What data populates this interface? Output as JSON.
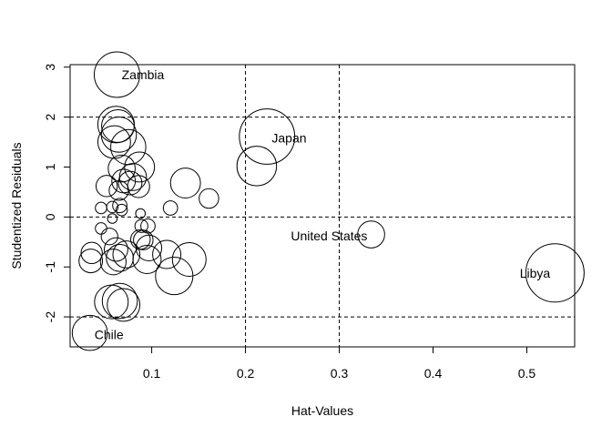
{
  "chart_data": {
    "type": "scatter",
    "title": "",
    "xlabel": "Hat-Values",
    "ylabel": "Studentized Residuals",
    "xlim": [
      0.013,
      0.551
    ],
    "ylim": [
      -2.6,
      3.05
    ],
    "x_ticks": [
      0.1,
      0.2,
      0.3,
      0.4,
      0.5
    ],
    "x_tick_labels": [
      "0.1",
      "0.2",
      "0.3",
      "0.4",
      "0.5"
    ],
    "y_ticks": [
      -2,
      -1,
      0,
      1,
      2,
      3
    ],
    "y_tick_labels": [
      "-2",
      "-1",
      "0",
      "1",
      "2",
      "3"
    ],
    "reference_lines": {
      "horizontal": [
        -2,
        0,
        2
      ],
      "vertical": [
        0.2,
        0.3
      ]
    },
    "points": [
      {
        "x": 0.063,
        "y": 2.85,
        "size": 0.6
      },
      {
        "x": 0.223,
        "y": 1.61,
        "size": 0.9
      },
      {
        "x": 0.334,
        "y": -0.35,
        "size": 0.2
      },
      {
        "x": 0.53,
        "y": -1.12,
        "size": 1.0
      },
      {
        "x": 0.034,
        "y": -2.32,
        "size": 0.35
      },
      {
        "x": 0.062,
        "y": 1.85,
        "size": 0.38
      },
      {
        "x": 0.064,
        "y": 1.82,
        "size": 0.3
      },
      {
        "x": 0.065,
        "y": 1.65,
        "size": 0.35
      },
      {
        "x": 0.06,
        "y": 1.5,
        "size": 0.3
      },
      {
        "x": 0.075,
        "y": 1.4,
        "size": 0.35
      },
      {
        "x": 0.212,
        "y": 1.02,
        "size": 0.45
      },
      {
        "x": 0.087,
        "y": 1.0,
        "size": 0.25
      },
      {
        "x": 0.068,
        "y": 0.97,
        "size": 0.2
      },
      {
        "x": 0.08,
        "y": 0.8,
        "size": 0.2
      },
      {
        "x": 0.07,
        "y": 0.72,
        "size": 0.15
      },
      {
        "x": 0.077,
        "y": 0.68,
        "size": 0.15
      },
      {
        "x": 0.136,
        "y": 0.68,
        "size": 0.25
      },
      {
        "x": 0.052,
        "y": 0.62,
        "size": 0.12
      },
      {
        "x": 0.086,
        "y": 0.61,
        "size": 0.13
      },
      {
        "x": 0.065,
        "y": 0.53,
        "size": 0.1
      },
      {
        "x": 0.161,
        "y": 0.37,
        "size": 0.1
      },
      {
        "x": 0.066,
        "y": 0.23,
        "size": 0.05
      },
      {
        "x": 0.046,
        "y": 0.18,
        "size": 0.03
      },
      {
        "x": 0.058,
        "y": 0.2,
        "size": 0.03
      },
      {
        "x": 0.12,
        "y": 0.18,
        "size": 0.05
      },
      {
        "x": 0.068,
        "y": 0.14,
        "size": 0.03
      },
      {
        "x": 0.088,
        "y": 0.07,
        "size": 0.02
      },
      {
        "x": 0.058,
        "y": -0.03,
        "size": 0.02
      },
      {
        "x": 0.046,
        "y": -0.23,
        "size": 0.03
      },
      {
        "x": 0.089,
        "y": -0.18,
        "size": 0.04
      },
      {
        "x": 0.096,
        "y": -0.18,
        "size": 0.05
      },
      {
        "x": 0.055,
        "y": -0.39,
        "size": 0.07
      },
      {
        "x": 0.088,
        "y": -0.45,
        "size": 0.1
      },
      {
        "x": 0.091,
        "y": -0.46,
        "size": 0.1
      },
      {
        "x": 0.097,
        "y": -0.62,
        "size": 0.18
      },
      {
        "x": 0.062,
        "y": -0.65,
        "size": 0.15
      },
      {
        "x": 0.036,
        "y": -0.72,
        "size": 0.12
      },
      {
        "x": 0.073,
        "y": -0.75,
        "size": 0.2
      },
      {
        "x": 0.116,
        "y": -0.75,
        "size": 0.22
      },
      {
        "x": 0.035,
        "y": -0.88,
        "size": 0.15
      },
      {
        "x": 0.066,
        "y": -0.82,
        "size": 0.2
      },
      {
        "x": 0.059,
        "y": -0.9,
        "size": 0.18
      },
      {
        "x": 0.095,
        "y": -0.85,
        "size": 0.22
      },
      {
        "x": 0.14,
        "y": -0.85,
        "size": 0.32
      },
      {
        "x": 0.124,
        "y": -1.18,
        "size": 0.4
      },
      {
        "x": 0.057,
        "y": -1.7,
        "size": 0.32
      },
      {
        "x": 0.066,
        "y": -1.68,
        "size": 0.35
      },
      {
        "x": 0.07,
        "y": -1.76,
        "size": 0.3
      }
    ],
    "labels": [
      {
        "text": "Zambia",
        "x": 0.068,
        "y": 2.85,
        "anchor": "start"
      },
      {
        "text": "Japan",
        "x": 0.228,
        "y": 1.58,
        "anchor": "start"
      },
      {
        "text": "United States",
        "x": 0.33,
        "y": -0.38,
        "anchor": "end"
      },
      {
        "text": "Libya",
        "x": 0.525,
        "y": -1.12,
        "anchor": "end"
      },
      {
        "text": "Chile",
        "x": 0.039,
        "y": -2.35,
        "anchor": "start"
      }
    ]
  }
}
